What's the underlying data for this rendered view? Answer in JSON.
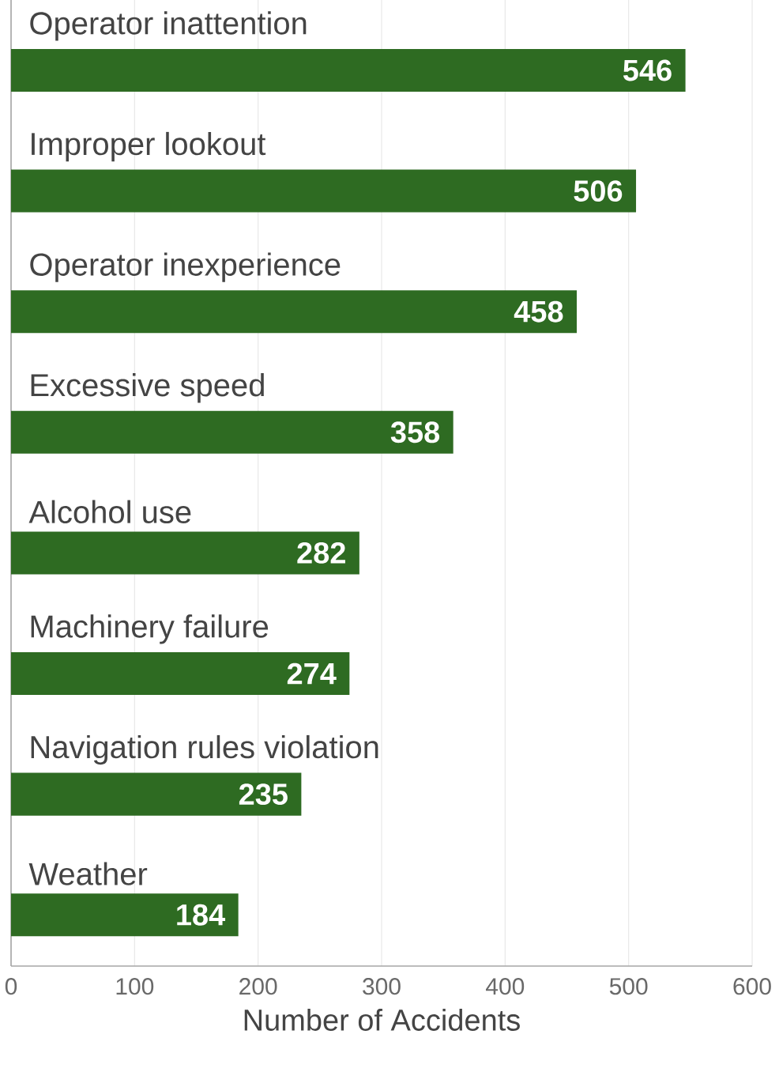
{
  "chart_data": {
    "type": "bar",
    "orientation": "horizontal",
    "categories": [
      "Operator inattention",
      "Improper lookout",
      "Operator inexperience",
      "Excessive speed",
      "Alcohol use",
      "Machinery failure",
      "Navigation rules violation",
      "Weather"
    ],
    "values": [
      546,
      506,
      458,
      358,
      282,
      274,
      235,
      184
    ],
    "color": "#2e6b22",
    "xlabel": "Number of Accidents",
    "xlim": [
      0,
      600
    ],
    "xticks": [
      0,
      100,
      200,
      300,
      400,
      500,
      600
    ],
    "grid": "x",
    "data_labels": true
  }
}
